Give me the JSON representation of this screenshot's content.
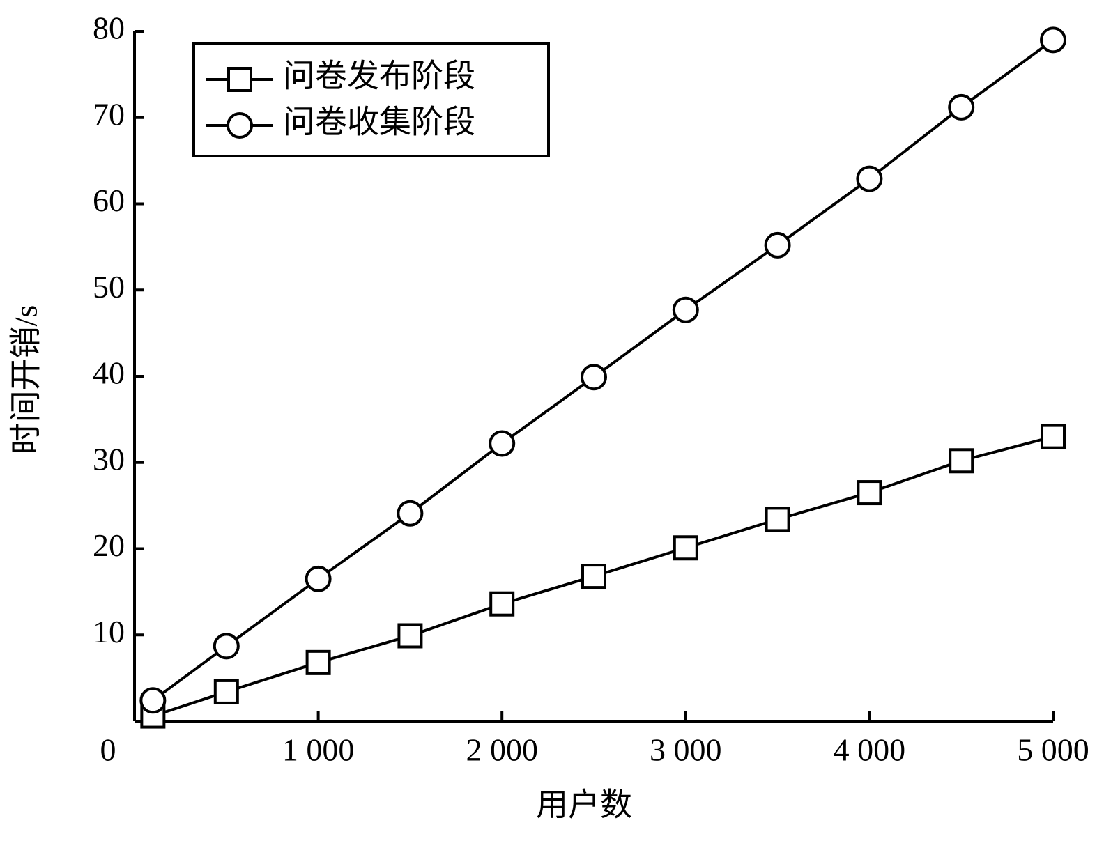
{
  "chart_data": {
    "type": "line",
    "xlabel": "用户数",
    "ylabel": "时间开销/s",
    "x": [
      100,
      500,
      1000,
      1500,
      2000,
      2500,
      3000,
      3500,
      4000,
      4500,
      5000
    ],
    "series": [
      {
        "name": "问卷发布阶段",
        "color": "#000000",
        "marker": "square",
        "values": [
          0.6,
          3.4,
          6.8,
          9.9,
          13.6,
          16.8,
          20.1,
          23.4,
          26.5,
          30.2,
          33.0
        ]
      },
      {
        "name": "问卷收集阶段",
        "color": "#000000",
        "marker": "circle",
        "values": [
          2.4,
          8.7,
          16.5,
          24.1,
          32.2,
          39.9,
          47.7,
          55.2,
          62.9,
          71.2,
          79.0
        ]
      }
    ],
    "xlim": [
      0,
      5000
    ],
    "xticks": [
      0,
      {
        "value": 1000,
        "label": "1 000"
      },
      {
        "value": 2000,
        "label": "2 000"
      },
      {
        "value": 3000,
        "label": "3 000"
      },
      {
        "value": 4000,
        "label": "4 000"
      },
      {
        "value": 5000,
        "label": "5 000"
      }
    ],
    "ylim": [
      0,
      80
    ],
    "yticks": [
      10,
      20,
      30,
      40,
      50,
      60,
      70,
      80
    ],
    "legend": "upper left",
    "grid": false
  }
}
